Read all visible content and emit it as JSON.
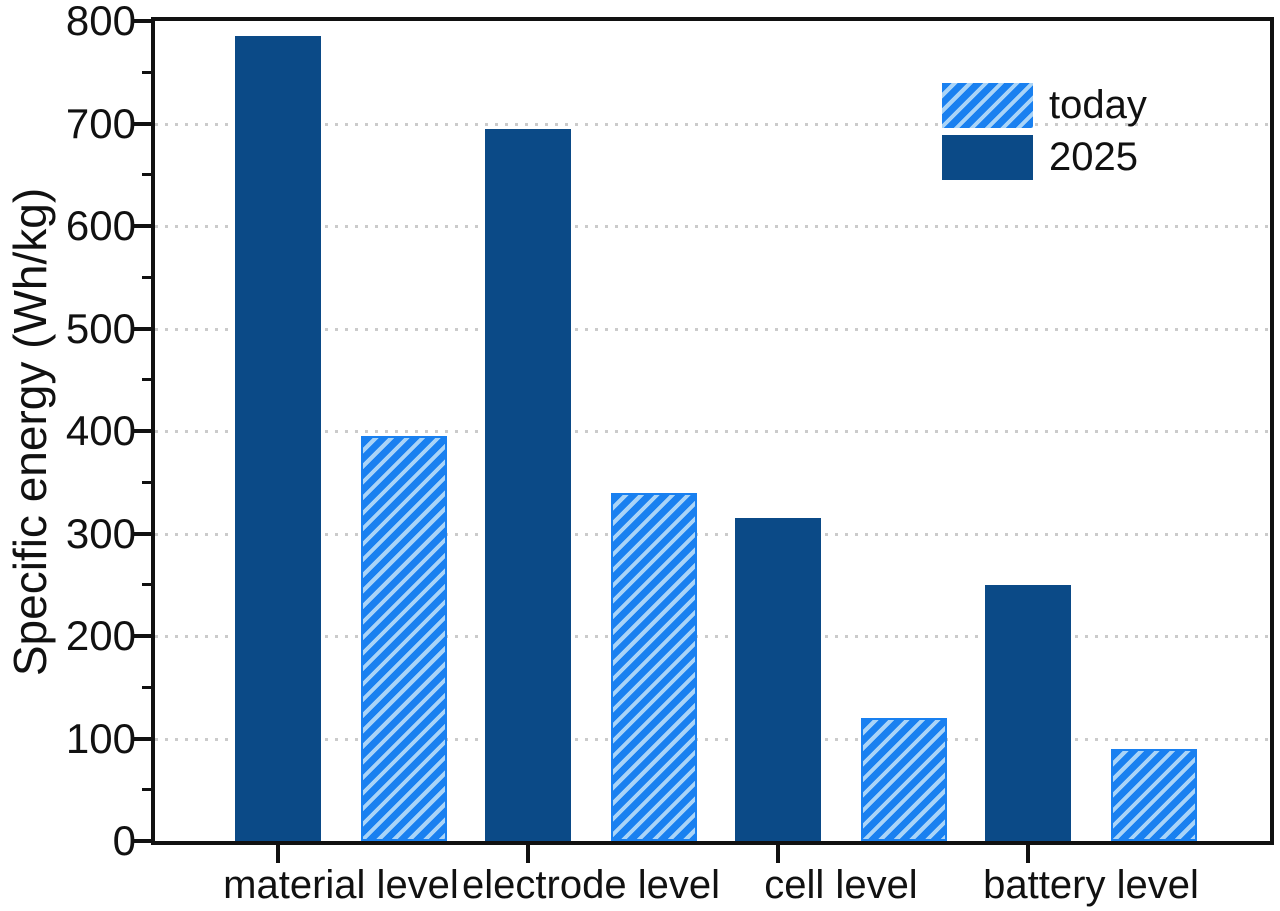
{
  "chart_data": {
    "type": "bar",
    "title": "",
    "xlabel": "",
    "ylabel": "Specific energy (Wh/kg)",
    "ylim": [
      0,
      800
    ],
    "ytick_step": 100,
    "yminor_step": 50,
    "ytick_labels": [
      "0",
      "100",
      "200",
      "300",
      "400",
      "500",
      "600",
      "700",
      "800"
    ],
    "categories": [
      "material level",
      "electrode level",
      "cell level",
      "battery level"
    ],
    "series": [
      {
        "name": "today",
        "style": "hatched",
        "values": [
          395,
          340,
          120,
          90
        ]
      },
      {
        "name": "2025",
        "style": "solid",
        "values": [
          785,
          695,
          315,
          250
        ]
      }
    ],
    "grid": "horizontal-dotted",
    "legend_position": "top-right",
    "colors": {
      "solid_series": "#0b4a87",
      "hatch_base": "#1980f0",
      "hatch_stripe": "#a9d4f8",
      "gridline": "#cbcbcb",
      "axis": "#111111",
      "background": "#ffffff"
    }
  }
}
